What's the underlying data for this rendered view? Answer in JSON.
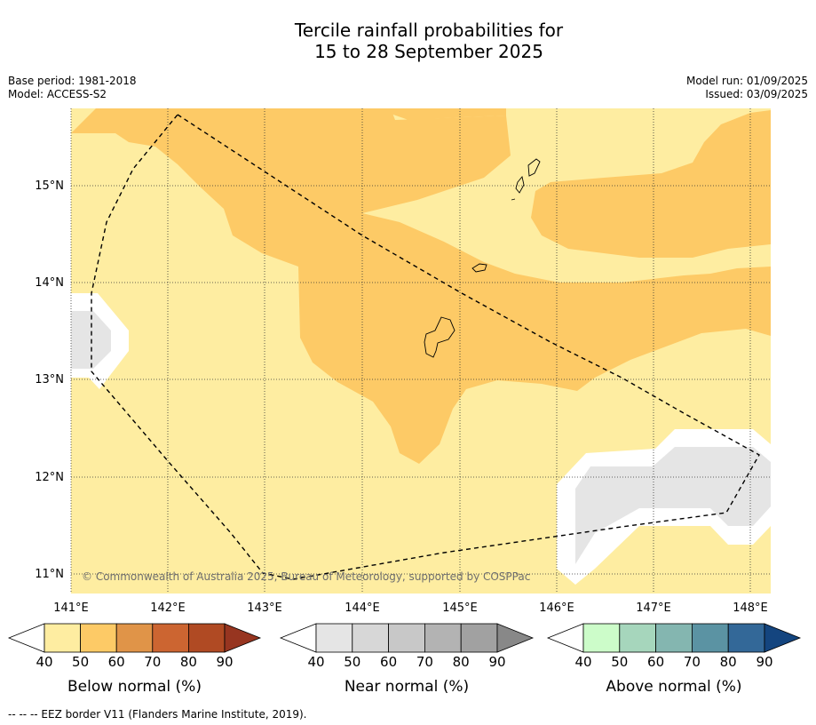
{
  "title_line1": "Tercile rainfall probabilities for",
  "title_line2": "15 to 28 September 2025",
  "base_period": "Base period: 1981-2018",
  "model": "Model: ACCESS-S2",
  "model_run": "Model run: 01/09/2025",
  "issued": "Issued: 03/09/2025",
  "copyright": "© Commonwealth of Australia 2025, Bureau of Meteorology, supported by COSPPac",
  "footer": "--  --  -- EEZ border V11 (Flanders Marine Institute, 2019).",
  "axes": {
    "lon_labels": [
      "141°E",
      "142°E",
      "143°E",
      "144°E",
      "145°E",
      "146°E",
      "147°E",
      "148°E"
    ],
    "lat_labels": [
      "15°N",
      "14°N",
      "13°N",
      "12°N",
      "11°N"
    ]
  },
  "colorbars": [
    {
      "label": "Below normal (%)",
      "ticks": [
        "40",
        "50",
        "60",
        "70",
        "80",
        "90"
      ],
      "colors": [
        "#ffffff",
        "#feeda1",
        "#fdca66",
        "#e09448",
        "#cc6531",
        "#b04a23",
        "#973520"
      ]
    },
    {
      "label": "Near normal (%)",
      "ticks": [
        "40",
        "50",
        "60",
        "70",
        "80",
        "90"
      ],
      "colors": [
        "#ffffff",
        "#e5e5e5",
        "#d7d7d7",
        "#c8c8c8",
        "#b3b3b3",
        "#a1a1a1",
        "#888888"
      ]
    },
    {
      "label": "Above normal (%)",
      "ticks": [
        "40",
        "50",
        "60",
        "70",
        "80",
        "90"
      ],
      "colors": [
        "#ffffff",
        "#ccfcc9",
        "#a6d6bc",
        "#84b6b0",
        "#5b93a3",
        "#336898",
        "#14457f"
      ]
    }
  ],
  "colors": {
    "below_40_50": "#feeda1",
    "below_50_60": "#fdca66",
    "near_40_50": "#e5e5e5",
    "white": "#ffffff"
  }
}
